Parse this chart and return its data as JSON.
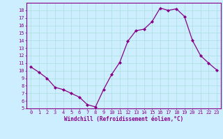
{
  "x": [
    0,
    1,
    2,
    3,
    4,
    5,
    6,
    7,
    8,
    9,
    10,
    11,
    12,
    13,
    14,
    15,
    16,
    17,
    18,
    19,
    20,
    21,
    22,
    23
  ],
  "y": [
    10.5,
    9.8,
    9.0,
    7.8,
    7.5,
    7.0,
    6.5,
    5.5,
    5.2,
    7.5,
    9.5,
    11.1,
    13.9,
    15.3,
    15.5,
    16.5,
    18.3,
    18.0,
    18.2,
    17.2,
    14.0,
    12.0,
    11.0,
    10.1
  ],
  "line_color": "#880088",
  "marker": "D",
  "marker_size": 2.0,
  "bg_color": "#cceeff",
  "grid_color": "#aadddd",
  "xlabel": "Windchill (Refroidissement éolien,°C)",
  "xlim": [
    -0.5,
    23.5
  ],
  "ylim": [
    5,
    19
  ],
  "xticks": [
    0,
    1,
    2,
    3,
    4,
    5,
    6,
    7,
    8,
    9,
    10,
    11,
    12,
    13,
    14,
    15,
    16,
    17,
    18,
    19,
    20,
    21,
    22,
    23
  ],
  "yticks": [
    5,
    6,
    7,
    8,
    9,
    10,
    11,
    12,
    13,
    14,
    15,
    16,
    17,
    18
  ],
  "tick_color": "#880088",
  "label_fontsize": 5.5,
  "tick_fontsize": 5.0,
  "spine_color": "#880088",
  "linewidth": 0.9
}
